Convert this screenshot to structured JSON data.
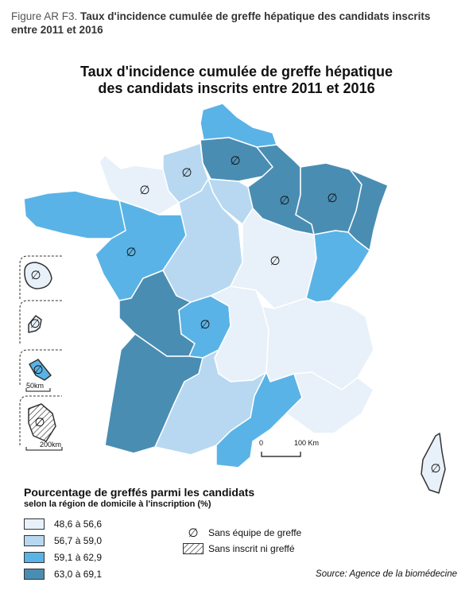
{
  "caption": {
    "label": "Figure AR F3.",
    "text": "Taux d'incidence cumulée de greffe hépatique des candidats inscrits entre 2011 et 2016"
  },
  "map": {
    "title_line1": "Taux d'incidence cumulée de greffe hépatique",
    "title_line2": "des candidats inscrits entre 2011 et 2016"
  },
  "colors": {
    "class1": "#e8f1fa",
    "class2": "#b7d8f0",
    "class3": "#5ab3e6",
    "class4": "#4a8db3"
  },
  "regions": [
    {
      "name": "Nord-Pas-de-Calais",
      "class": "class3",
      "no_team": false
    },
    {
      "name": "Picardie",
      "class": "class4",
      "no_team": true
    },
    {
      "name": "Haute-Normandie",
      "class": "class2",
      "no_team": true
    },
    {
      "name": "Basse-Normandie",
      "class": "class1",
      "no_team": true
    },
    {
      "name": "Bretagne",
      "class": "class3",
      "no_team": false
    },
    {
      "name": "Pays de la Loire",
      "class": "class3",
      "no_team": true
    },
    {
      "name": "Centre",
      "class": "class2",
      "no_team": false
    },
    {
      "name": "Île-de-France",
      "class": "class2",
      "no_team": false
    },
    {
      "name": "Champagne-Ardenne",
      "class": "class4",
      "no_team": true
    },
    {
      "name": "Lorraine",
      "class": "class4",
      "no_team": true
    },
    {
      "name": "Alsace",
      "class": "class4",
      "no_team": false
    },
    {
      "name": "Bourgogne",
      "class": "class1",
      "no_team": true
    },
    {
      "name": "Franche-Comté",
      "class": "class3",
      "no_team": false
    },
    {
      "name": "Poitou-Charentes",
      "class": "class4",
      "no_team": false
    },
    {
      "name": "Limousin",
      "class": "class3",
      "no_team": true
    },
    {
      "name": "Auvergne",
      "class": "class1",
      "no_team": false
    },
    {
      "name": "Rhône-Alpes",
      "class": "class1",
      "no_team": false
    },
    {
      "name": "Aquitaine",
      "class": "class4",
      "no_team": false
    },
    {
      "name": "Midi-Pyrénées",
      "class": "class2",
      "no_team": false
    },
    {
      "name": "Languedoc-Roussillon",
      "class": "class3",
      "no_team": false
    },
    {
      "name": "Provence-Alpes-Côte d'Azur",
      "class": "class1",
      "no_team": false
    },
    {
      "name": "Corse",
      "class": "class1",
      "no_team": true
    },
    {
      "name": "La Réunion",
      "class": "class1",
      "no_team": true
    },
    {
      "name": "Guadeloupe",
      "class": "class1",
      "no_team": true
    },
    {
      "name": "Martinique",
      "class": "class3",
      "no_team": true
    },
    {
      "name": "Guyane",
      "class": "hatched",
      "no_team": true
    }
  ],
  "scale": {
    "start": "0",
    "end": "100 Km",
    "inset_small": "50km",
    "inset_large": "200km"
  },
  "legend": {
    "title": "Pourcentage de greffés parmi les candidats",
    "subtitle": "selon la région de domicile à l'inscription (%)",
    "items": [
      {
        "label": "48,6 à 56,6",
        "color": "#e8f1fa"
      },
      {
        "label": "56,7 à 59,0",
        "color": "#b7d8f0"
      },
      {
        "label": "59,1 à 62,9",
        "color": "#5ab3e6"
      },
      {
        "label": "63,0 à 69,1",
        "color": "#4a8db3"
      }
    ],
    "symbols": {
      "no_team_glyph": "∅",
      "no_team": "Sans équipe de greffe",
      "none": "Sans inscrit ni greffé"
    }
  },
  "source": "Source: Agence de la biomédecine"
}
